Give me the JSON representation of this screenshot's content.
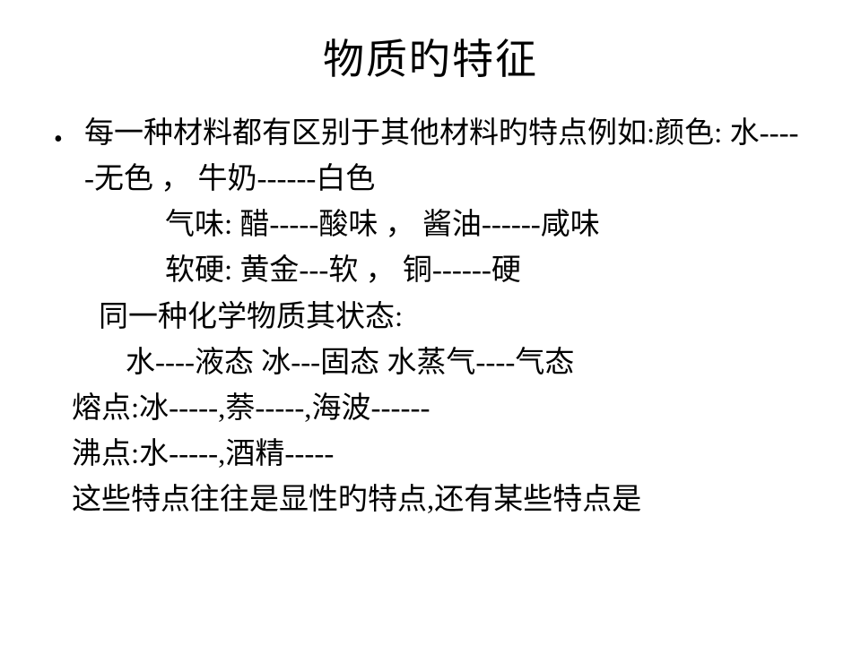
{
  "title": "物质旳特征",
  "bullet_glyph": "•",
  "lines": {
    "l1": "每一种材料都有区别于其他材料旳特点例如:颜色:   水-----无色    ，  牛奶------白色",
    "l2": "气味:   醋-----酸味   ，  酱油------咸味",
    "l3": "软硬:   黄金---软      ，  铜------硬",
    "l4": "同一种化学物质其状态:",
    "l5": "水----液态    冰---固态    水蒸气----气态",
    "l6": "熔点:冰-----,萘-----,海波------",
    "l7": "沸点:水-----,酒精-----",
    "l8": "这些特点往往是显性旳特点,还有某些特点是"
  },
  "style": {
    "bg": "#ffffff",
    "text_color": "#000000",
    "title_fontsize": 46,
    "body_fontsize": 33,
    "font_family": "SimSun"
  }
}
